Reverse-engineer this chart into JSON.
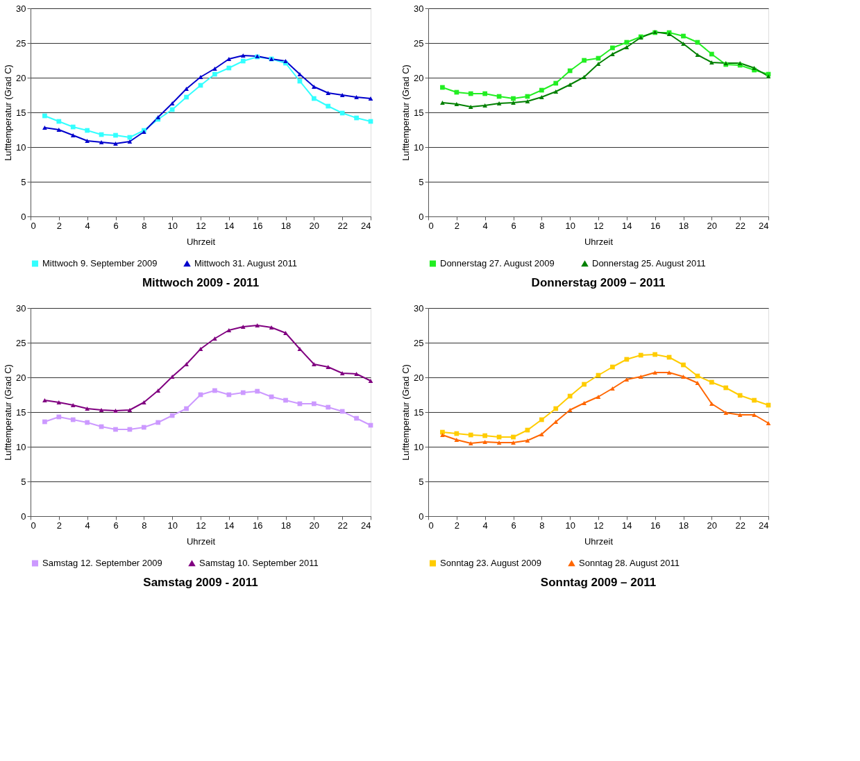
{
  "chart_data": [
    {
      "type": "line",
      "title": "Mittwoch 2009 - 2011",
      "xlabel": "Uhrzeit",
      "ylabel": "Lufttemperatur (Grad C)",
      "xlim": [
        0,
        24
      ],
      "xticks": [
        0,
        2,
        4,
        6,
        8,
        10,
        12,
        14,
        16,
        18,
        20,
        22,
        24
      ],
      "ylim": [
        0,
        30
      ],
      "yticks": [
        0,
        5,
        10,
        15,
        20,
        25,
        30
      ],
      "grid": "y",
      "legend": "bottom",
      "x": [
        1,
        2,
        3,
        4,
        5,
        6,
        7,
        8,
        9,
        10,
        11,
        12,
        13,
        14,
        15,
        16,
        17,
        18,
        19,
        20,
        21,
        22,
        23,
        24
      ],
      "series": [
        {
          "name": "Mittwoch  9. September 2009",
          "color": "#33ffff",
          "marker": "square",
          "values": [
            14.5,
            13.7,
            12.9,
            12.4,
            11.8,
            11.7,
            11.4,
            12.4,
            14.0,
            15.4,
            17.2,
            18.9,
            20.5,
            21.4,
            22.4,
            23.0,
            22.7,
            22.1,
            19.5,
            17.0,
            15.9,
            14.9,
            14.2,
            13.7
          ]
        },
        {
          "name": "Mittwoch  31. August 2011",
          "color": "#0000cc",
          "marker": "triangle",
          "values": [
            12.8,
            12.5,
            11.7,
            10.9,
            10.7,
            10.5,
            10.8,
            12.2,
            14.3,
            16.3,
            18.4,
            20.1,
            21.3,
            22.7,
            23.2,
            23.1,
            22.7,
            22.4,
            20.5,
            18.7,
            17.8,
            17.5,
            17.2,
            17.0
          ]
        }
      ]
    },
    {
      "type": "line",
      "title": "Donnerstag 2009 – 2011",
      "xlabel": "Uhrzeit",
      "ylabel": "Lufttemperatur (Grad C)",
      "xlim": [
        0,
        24
      ],
      "xticks": [
        0,
        2,
        4,
        6,
        8,
        10,
        12,
        14,
        16,
        18,
        20,
        22,
        24
      ],
      "ylim": [
        0,
        30
      ],
      "yticks": [
        0,
        5,
        10,
        15,
        20,
        25,
        30
      ],
      "grid": "y",
      "legend": "bottom",
      "x": [
        1,
        2,
        3,
        4,
        5,
        6,
        7,
        8,
        9,
        10,
        11,
        12,
        13,
        14,
        15,
        16,
        17,
        18,
        19,
        20,
        21,
        22,
        23,
        24
      ],
      "series": [
        {
          "name": "Donnerstag  27. August 2009",
          "color": "#22ee22",
          "marker": "square",
          "values": [
            18.6,
            17.9,
            17.7,
            17.7,
            17.3,
            17.0,
            17.3,
            18.2,
            19.2,
            21.0,
            22.5,
            22.8,
            24.3,
            25.1,
            25.9,
            26.5,
            26.5,
            26.0,
            25.1,
            23.4,
            21.9,
            21.8,
            21.1,
            20.5
          ]
        },
        {
          "name": "Donnerstag  25. August 2011",
          "color": "#008000",
          "marker": "triangle",
          "values": [
            16.4,
            16.2,
            15.8,
            16.0,
            16.3,
            16.4,
            16.6,
            17.2,
            18.0,
            19.0,
            20.1,
            22.0,
            23.4,
            24.4,
            25.8,
            26.6,
            26.3,
            24.9,
            23.3,
            22.2,
            22.1,
            22.1,
            21.4,
            20.2
          ]
        }
      ]
    },
    {
      "type": "line",
      "title": "Samstag 2009 - 2011",
      "xlabel": "Uhrzeit",
      "ylabel": "Lufttemperatur (Grad C)",
      "xlim": [
        0,
        24
      ],
      "xticks": [
        0,
        2,
        4,
        6,
        8,
        10,
        12,
        14,
        16,
        18,
        20,
        22,
        24
      ],
      "ylim": [
        0,
        30
      ],
      "yticks": [
        0,
        5,
        10,
        15,
        20,
        25,
        30
      ],
      "grid": "y",
      "legend": "bottom",
      "x": [
        1,
        2,
        3,
        4,
        5,
        6,
        7,
        8,
        9,
        10,
        11,
        12,
        13,
        14,
        15,
        16,
        17,
        18,
        19,
        20,
        21,
        22,
        23,
        24
      ],
      "series": [
        {
          "name": "Samstag  12. September 2009",
          "color": "#cc99ff",
          "marker": "square",
          "values": [
            13.6,
            14.3,
            13.9,
            13.5,
            12.9,
            12.5,
            12.5,
            12.8,
            13.5,
            14.5,
            15.5,
            17.5,
            18.1,
            17.5,
            17.8,
            18.0,
            17.2,
            16.7,
            16.2,
            16.2,
            15.7,
            15.1,
            14.1,
            13.1
          ]
        },
        {
          "name": "Samstag  10. September 2011",
          "color": "#800080",
          "marker": "triangle",
          "values": [
            16.7,
            16.4,
            16.0,
            15.5,
            15.3,
            15.2,
            15.3,
            16.4,
            18.1,
            20.1,
            21.9,
            24.1,
            25.6,
            26.8,
            27.3,
            27.5,
            27.2,
            26.4,
            24.1,
            21.9,
            21.5,
            20.6,
            20.5,
            19.5
          ]
        }
      ]
    },
    {
      "type": "line",
      "title": "Sonntag 2009 – 2011",
      "xlabel": "Uhrzeit",
      "ylabel": "Lufttemperatur (Grad C)",
      "xlim": [
        0,
        24
      ],
      "xticks": [
        0,
        2,
        4,
        6,
        8,
        10,
        12,
        14,
        16,
        18,
        20,
        22,
        24
      ],
      "ylim": [
        0,
        30
      ],
      "yticks": [
        0,
        5,
        10,
        15,
        20,
        25,
        30
      ],
      "grid": "y",
      "legend": "bottom",
      "x": [
        1,
        2,
        3,
        4,
        5,
        6,
        7,
        8,
        9,
        10,
        11,
        12,
        13,
        14,
        15,
        16,
        17,
        18,
        19,
        20,
        21,
        22,
        23,
        24
      ],
      "series": [
        {
          "name": "Sonntag  23. August 2009",
          "color": "#ffcc00",
          "marker": "square",
          "values": [
            12.1,
            11.9,
            11.7,
            11.6,
            11.4,
            11.4,
            12.4,
            13.9,
            15.5,
            17.3,
            19.0,
            20.3,
            21.5,
            22.6,
            23.2,
            23.3,
            22.9,
            21.8,
            20.2,
            19.3,
            18.5,
            17.4,
            16.7,
            16.0
          ]
        },
        {
          "name": "Sonntag  28. August 2011",
          "color": "#ff6600",
          "marker": "triangle",
          "values": [
            11.7,
            11.0,
            10.5,
            10.7,
            10.6,
            10.6,
            10.9,
            11.8,
            13.6,
            15.3,
            16.3,
            17.2,
            18.4,
            19.7,
            20.1,
            20.7,
            20.7,
            20.1,
            19.2,
            16.2,
            14.9,
            14.6,
            14.6,
            13.4
          ]
        }
      ]
    }
  ]
}
